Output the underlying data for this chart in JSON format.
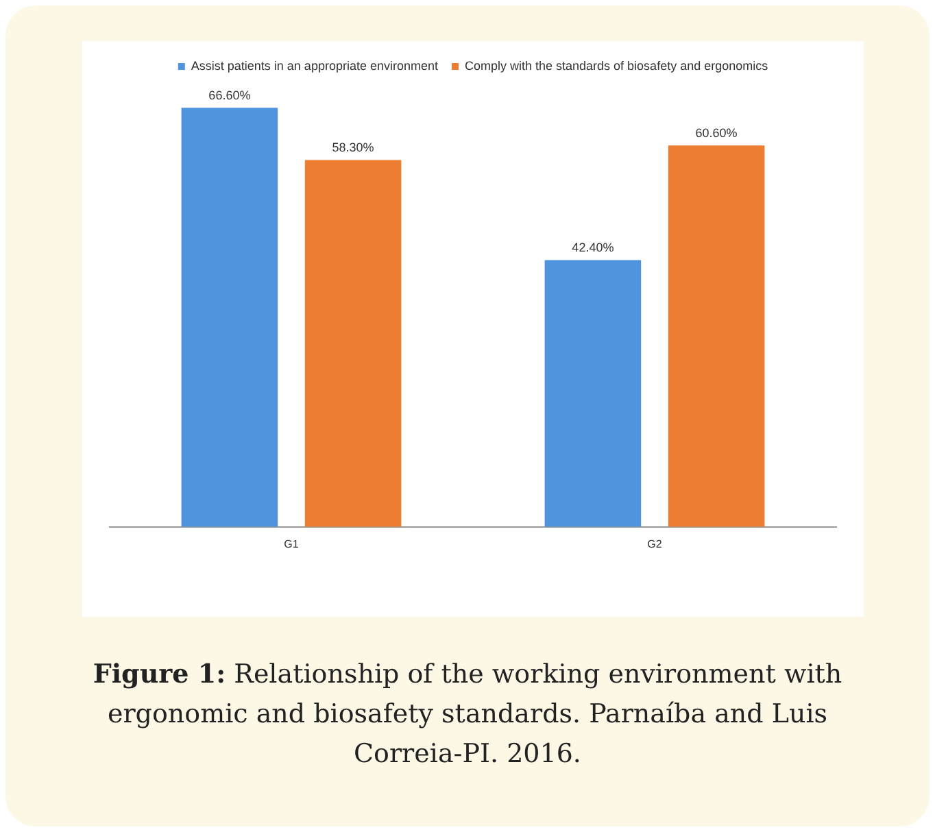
{
  "chart_data": {
    "type": "bar",
    "categories": [
      "G1",
      "G2"
    ],
    "series": [
      {
        "name": "Assist patients in an appropriate environment",
        "color": "#4f94dc",
        "values": [
          66.6,
          42.4
        ],
        "value_labels": [
          "66.60%",
          "42.40%"
        ]
      },
      {
        "name": "Comply with the standards of biosafety and ergonomics",
        "color": "#ed7d31",
        "values": [
          58.3,
          60.6
        ],
        "value_labels": [
          "58.30%",
          "60.60%"
        ]
      }
    ],
    "grid": false,
    "legend": "top",
    "tick_labels": "x",
    "annotations": [
      "Figure 1: Relationship of the working environment with ergonomic and biosafety standards. Parnaíba and Luis Correia-PI. 2016."
    ]
  }
}
